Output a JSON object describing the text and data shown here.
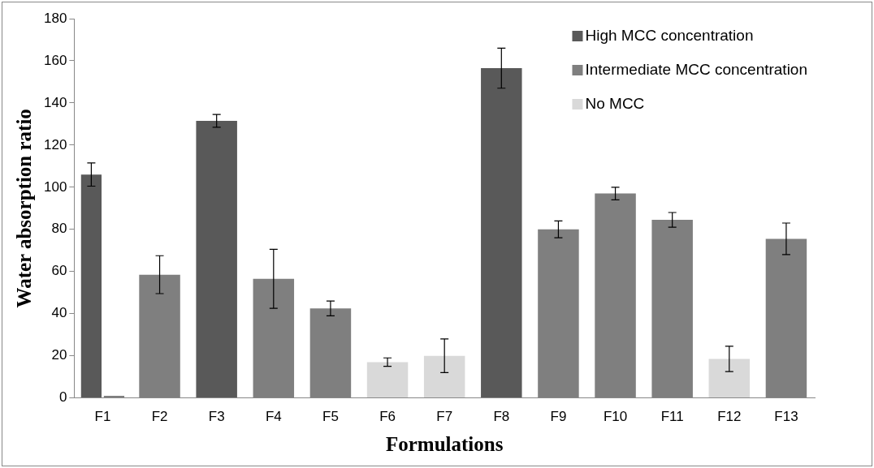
{
  "chart_data": {
    "type": "bar",
    "xlabel": "Formulations",
    "ylabel": "Water absorption ratio",
    "categories": [
      "F1",
      "F2",
      "F3",
      "F4",
      "F5",
      "F6",
      "F7",
      "F8",
      "F9",
      "F10",
      "F11",
      "F12",
      "F13"
    ],
    "series": [
      {
        "name": "High MCC concentration",
        "color": "#595959",
        "values": [
          106,
          null,
          131.5,
          null,
          null,
          null,
          null,
          156.5,
          null,
          null,
          null,
          null,
          null
        ],
        "errors": [
          5.5,
          null,
          3,
          null,
          null,
          null,
          null,
          9.5,
          null,
          null,
          null,
          null,
          null
        ]
      },
      {
        "name": "Intermediate MCC concentration",
        "color": "#7f7f7f",
        "values": [
          1,
          58.5,
          null,
          56.5,
          42.5,
          null,
          null,
          null,
          80,
          97,
          84.5,
          null,
          75.5
        ],
        "errors": [
          null,
          9,
          null,
          14,
          3.5,
          null,
          null,
          null,
          4,
          3,
          3.5,
          null,
          7.5
        ]
      },
      {
        "name": "No MCC",
        "color": "#d9d9d9",
        "values": [
          null,
          null,
          null,
          null,
          null,
          17,
          20,
          null,
          null,
          null,
          null,
          18.5,
          null
        ],
        "errors": [
          null,
          null,
          null,
          null,
          null,
          2,
          8,
          null,
          null,
          null,
          null,
          6,
          null
        ]
      }
    ],
    "ylim": [
      0,
      180
    ],
    "yticks": [
      0,
      20,
      40,
      60,
      80,
      100,
      120,
      140,
      160,
      180
    ],
    "grid": false,
    "legend": "top right"
  }
}
